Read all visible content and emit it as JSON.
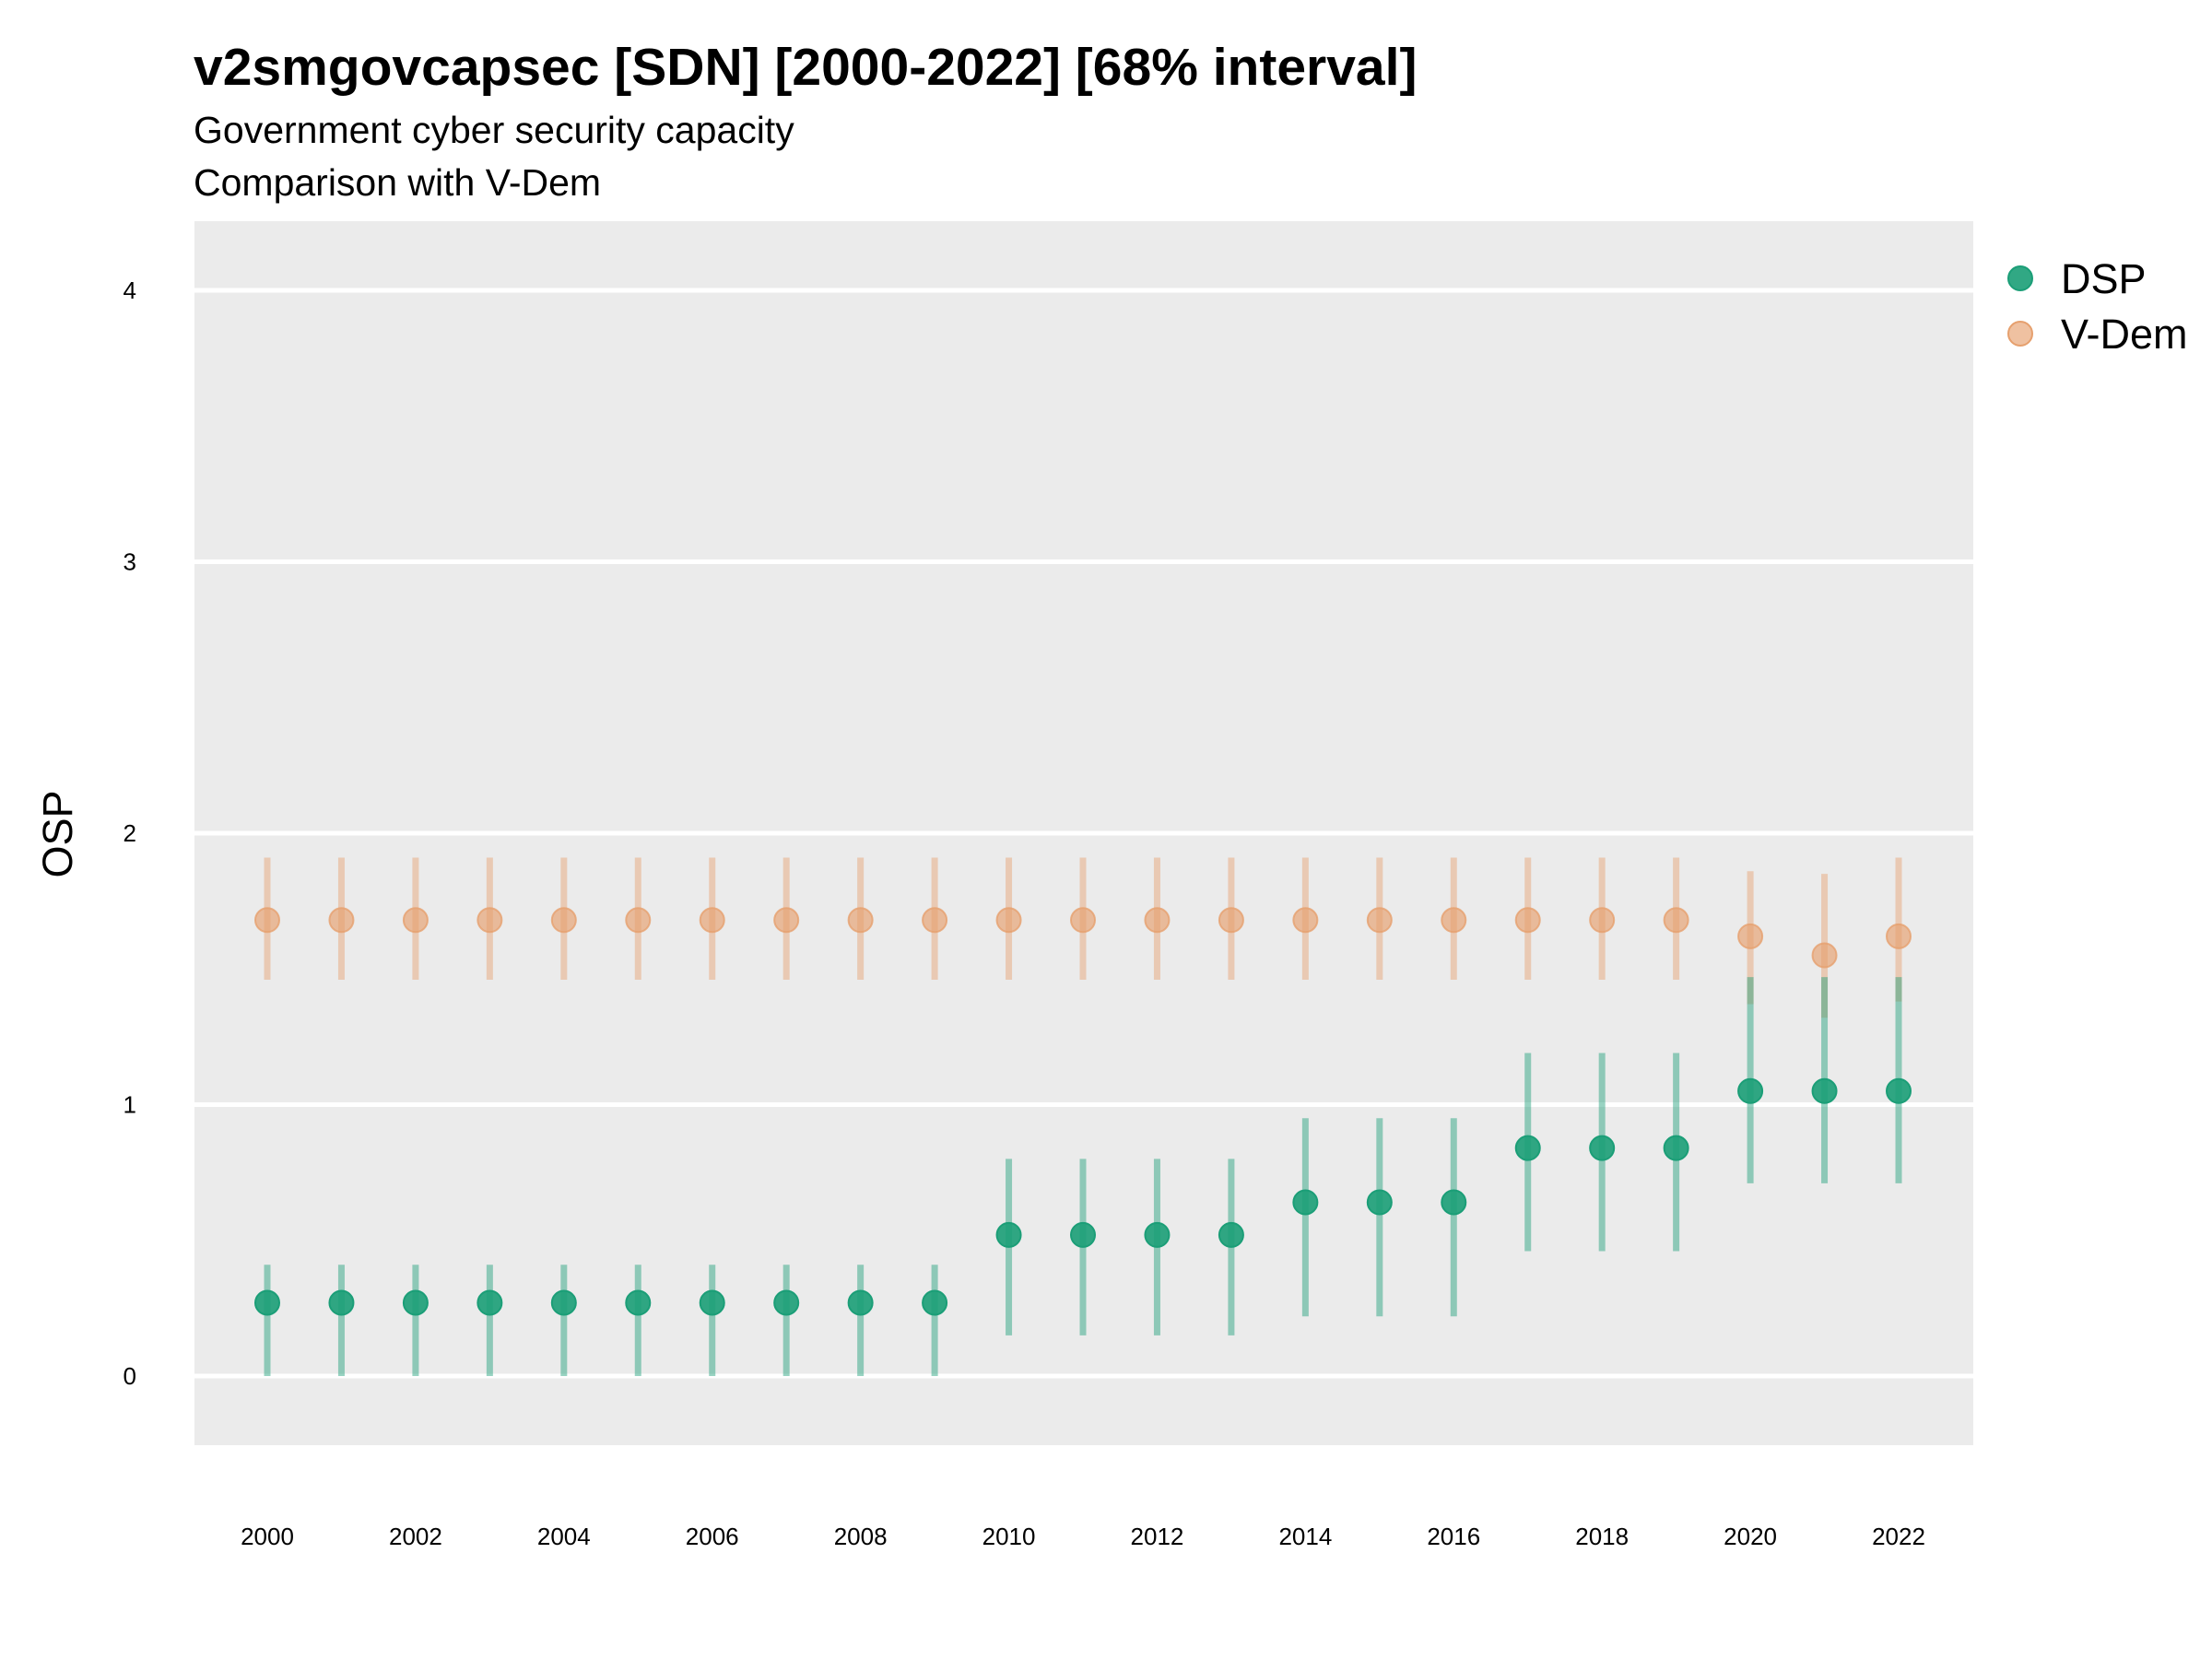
{
  "chart_data": {
    "type": "scatter",
    "title": "v2smgovcapsec [SDN] [2000-2022] [68% interval]",
    "subtitle": "Government cyber security capacity",
    "subtitle2": "Comparison with V-Dem",
    "xlabel": "",
    "ylabel": "OSP",
    "ylim": [
      -0.25,
      4.25
    ],
    "y_ticks": [
      0,
      1,
      2,
      3,
      4
    ],
    "x_ticks": [
      2000,
      2002,
      2004,
      2006,
      2008,
      2010,
      2012,
      2014,
      2016,
      2018,
      2020,
      2022
    ],
    "grid": true,
    "legend_position": "right",
    "x": [
      2000,
      2001,
      2002,
      2003,
      2004,
      2005,
      2006,
      2007,
      2008,
      2009,
      2010,
      2011,
      2012,
      2013,
      2014,
      2015,
      2016,
      2017,
      2018,
      2019,
      2020,
      2021,
      2022
    ],
    "series": [
      {
        "name": "DSP",
        "color": "#1b9e77",
        "values": [
          0.27,
          0.27,
          0.27,
          0.27,
          0.27,
          0.27,
          0.27,
          0.27,
          0.27,
          0.27,
          0.52,
          0.52,
          0.52,
          0.52,
          0.64,
          0.64,
          0.64,
          0.84,
          0.84,
          0.84,
          1.05,
          1.05,
          1.05
        ],
        "lower": [
          0.0,
          0.0,
          0.0,
          0.0,
          0.0,
          0.0,
          0.0,
          0.0,
          0.0,
          0.0,
          0.15,
          0.15,
          0.15,
          0.15,
          0.22,
          0.22,
          0.22,
          0.46,
          0.46,
          0.46,
          0.71,
          0.71,
          0.71
        ],
        "upper": [
          0.41,
          0.41,
          0.41,
          0.41,
          0.41,
          0.41,
          0.41,
          0.41,
          0.41,
          0.41,
          0.8,
          0.8,
          0.8,
          0.8,
          0.95,
          0.95,
          0.95,
          1.19,
          1.19,
          1.19,
          1.47,
          1.47,
          1.47
        ]
      },
      {
        "name": "V-Dem",
        "color": "#e6a06e",
        "values": [
          1.68,
          1.68,
          1.68,
          1.68,
          1.68,
          1.68,
          1.68,
          1.68,
          1.68,
          1.68,
          1.68,
          1.68,
          1.68,
          1.68,
          1.68,
          1.68,
          1.68,
          1.68,
          1.68,
          1.68,
          1.62,
          1.55,
          1.62
        ],
        "lower": [
          1.46,
          1.46,
          1.46,
          1.46,
          1.46,
          1.46,
          1.46,
          1.46,
          1.46,
          1.46,
          1.46,
          1.46,
          1.46,
          1.46,
          1.46,
          1.46,
          1.46,
          1.46,
          1.46,
          1.46,
          1.37,
          1.32,
          1.38
        ],
        "upper": [
          1.91,
          1.91,
          1.91,
          1.91,
          1.91,
          1.91,
          1.91,
          1.91,
          1.91,
          1.91,
          1.91,
          1.91,
          1.91,
          1.91,
          1.91,
          1.91,
          1.91,
          1.91,
          1.91,
          1.91,
          1.86,
          1.85,
          1.91
        ]
      }
    ]
  }
}
